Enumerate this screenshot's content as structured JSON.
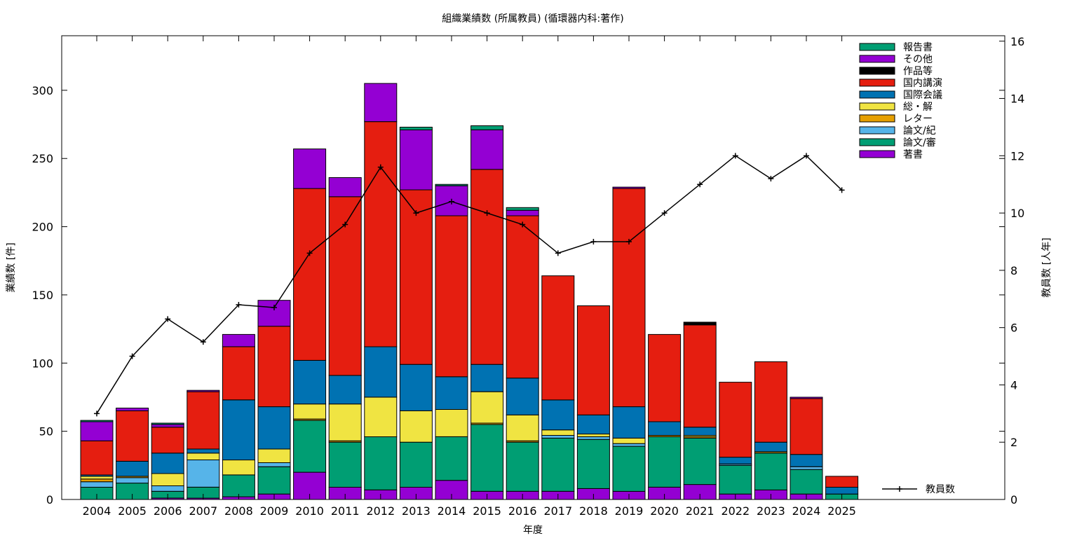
{
  "chart_data": {
    "type": "bar",
    "stacked": true,
    "title": "組織業績数 (所属教員) (循環器内科:著作)",
    "xlabel": "年度",
    "ylabel": "業績数 [件]",
    "y2label": "教員数 [人年]",
    "ylim": [
      0,
      340
    ],
    "y2lim": [
      0,
      16.19
    ],
    "y_ticks": [
      "0",
      "50",
      "100",
      "150",
      "200",
      "250",
      "300"
    ],
    "y2_ticks": [
      "0",
      "2",
      "4",
      "6",
      "8",
      "10",
      "12",
      "14",
      "16"
    ],
    "grid": false,
    "legend_position": "top-right",
    "categories": [
      "2004",
      "2005",
      "2006",
      "2007",
      "2008",
      "2009",
      "2010",
      "2011",
      "2012",
      "2013",
      "2014",
      "2015",
      "2016",
      "2017",
      "2018",
      "2019",
      "2020",
      "2021",
      "2022",
      "2023",
      "2024",
      "2025"
    ],
    "series": [
      {
        "name": "著書",
        "color": "#9400d3",
        "values": [
          0,
          0,
          1,
          1,
          2,
          4,
          20,
          9,
          7,
          9,
          14,
          6,
          6,
          6,
          8,
          6,
          9,
          11,
          4,
          7,
          4,
          0
        ]
      },
      {
        "name": "論文/審",
        "color": "#009e73",
        "values": [
          9,
          12,
          5,
          8,
          16,
          20,
          38,
          33,
          39,
          33,
          32,
          49,
          36,
          39,
          36,
          33,
          37,
          34,
          21,
          27,
          18,
          4
        ]
      },
      {
        "name": "論文/紀",
        "color": "#56b4e9",
        "values": [
          4,
          4,
          4,
          20,
          0,
          3,
          0,
          0,
          0,
          0,
          0,
          0,
          0,
          2,
          2,
          2,
          0,
          0,
          1,
          0,
          2,
          0
        ]
      },
      {
        "name": "レター",
        "color": "#e69f00",
        "values": [
          2,
          1,
          0,
          0,
          0,
          0,
          1,
          1,
          0,
          0,
          0,
          1,
          1,
          0,
          0,
          0,
          1,
          1,
          0,
          1,
          0,
          0
        ]
      },
      {
        "name": "総・解",
        "color": "#f0e442",
        "values": [
          2,
          0,
          9,
          5,
          11,
          10,
          11,
          27,
          29,
          23,
          20,
          23,
          19,
          4,
          2,
          4,
          0,
          1,
          0,
          0,
          0,
          0
        ]
      },
      {
        "name": "国際会議",
        "color": "#0072b2",
        "values": [
          1,
          11,
          15,
          3,
          44,
          31,
          32,
          21,
          37,
          34,
          24,
          20,
          27,
          22,
          14,
          23,
          10,
          6,
          5,
          7,
          9,
          5
        ]
      },
      {
        "name": "国内講演",
        "color": "#e51e10",
        "values": [
          25,
          37,
          19,
          42,
          39,
          59,
          126,
          131,
          165,
          128,
          118,
          143,
          119,
          91,
          80,
          160,
          64,
          75,
          55,
          59,
          41,
          8
        ]
      },
      {
        "name": "作品等",
        "color": "#000000",
        "values": [
          0,
          0,
          0,
          0,
          0,
          0,
          0,
          0,
          0,
          0,
          0,
          0,
          0,
          0,
          0,
          0,
          0,
          2,
          0,
          0,
          0,
          0
        ]
      },
      {
        "name": "その他",
        "color": "#9400d3",
        "values": [
          14,
          2,
          2,
          1,
          9,
          19,
          29,
          14,
          28,
          44,
          22,
          29,
          4,
          0,
          0,
          1,
          0,
          0,
          0,
          0,
          1,
          0
        ]
      },
      {
        "name": "報告書",
        "color": "#009e73",
        "values": [
          1,
          0,
          1,
          0,
          0,
          0,
          0,
          0,
          0,
          2,
          1,
          3,
          2,
          0,
          0,
          0,
          0,
          0,
          0,
          0,
          0,
          0
        ]
      }
    ],
    "line_series": {
      "name": "教員数",
      "color": "#000000",
      "axis": "y2",
      "values": [
        3.0,
        5.0,
        6.3,
        5.5,
        6.8,
        6.7,
        8.6,
        9.6,
        11.6,
        10.0,
        10.4,
        10.0,
        9.6,
        8.6,
        9.0,
        9.0,
        10.0,
        11.0,
        12.0,
        11.2,
        12.0,
        10.8
      ]
    }
  }
}
